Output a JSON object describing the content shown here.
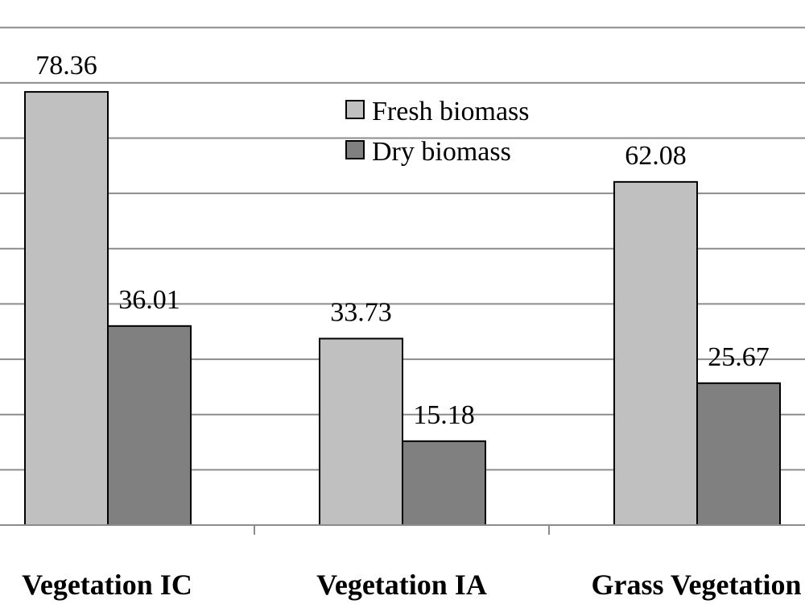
{
  "chart_data": {
    "type": "bar",
    "categories": [
      "Vegetation IC",
      "Vegetation IA",
      "Grass Vegetation"
    ],
    "series": [
      {
        "name": "Fresh biomass",
        "values": [
          78.36,
          33.73,
          62.08
        ],
        "color": "#c0c0c0",
        "labels": [
          "78.36",
          "33.73",
          "62.08"
        ]
      },
      {
        "name": "Dry biomass",
        "values": [
          36.01,
          15.18,
          25.67
        ],
        "color": "#808080",
        "labels": [
          "36.01",
          "15.18",
          "25.67"
        ]
      }
    ],
    "title": "",
    "xlabel": "",
    "ylabel": "",
    "ylim": [
      0,
      90
    ],
    "grid": true,
    "legend": "top-center"
  }
}
